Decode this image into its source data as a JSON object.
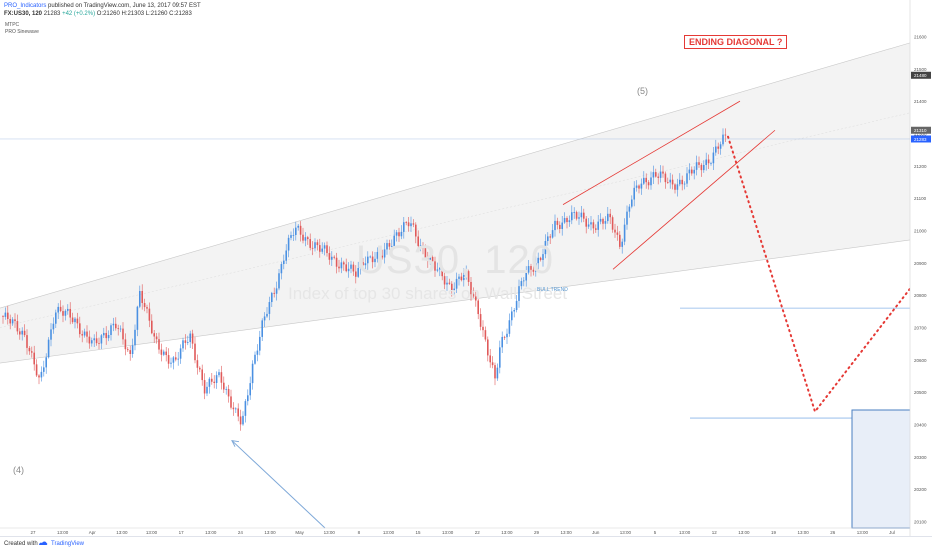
{
  "header": {
    "publisher": "PRO_Indicators",
    "published_text": "published on TradingView.com, June 13, 2017 09:57 EST",
    "symbol": "FX:US30, 120",
    "last": "21283",
    "change": "+42 (+0.2%)",
    "ohlc": "O:21260 H:21303 L:21260 C:21283"
  },
  "indicators": [
    "MTPC",
    "PRO Sinewave"
  ],
  "watermark": {
    "symbol": "US30, 120",
    "description": "Index of top 30 shares on Wall Street"
  },
  "annotations": {
    "ending_diagonal": "ENDING DIAGONAL ?",
    "wave5": "(5)",
    "wave4": "(4)",
    "bull_trend": "BULL TREND"
  },
  "footer": {
    "created_with": "Created with",
    "brand": "TradingView"
  },
  "colors": {
    "up_candle": "#4a90e2",
    "down_candle": "#e05a5a",
    "channel_fill": "#f3f3f3",
    "channel_line": "#c8c8c8",
    "diagonal": "#e53935",
    "projection": "#e53935",
    "arrow": "#7ea8d8",
    "level_line": "#8ab4e8",
    "last_price": "#2962ff"
  },
  "chart_data": {
    "type": "candlestick",
    "title": "US30, 120",
    "ylim": [
      20080,
      21620
    ],
    "price_axis_labels": [
      "21600",
      "21500",
      "21400",
      "21300",
      "21200",
      "21100",
      "21000",
      "20900",
      "20800",
      "20700",
      "20600",
      "20500",
      "20400",
      "20300",
      "20200",
      "20100"
    ],
    "price_axis_marked": [
      "21480",
      "21310",
      "21283"
    ],
    "last_price": 21283,
    "time_axis_labels": [
      "27",
      "13:00",
      "Apr",
      "13:00",
      "13:00",
      "17",
      "13:00",
      "24",
      "13:00",
      "May",
      "13:00",
      "8",
      "13:00",
      "15",
      "13:00",
      "22",
      "13:00",
      "29",
      "13:00",
      "Jun",
      "13:00",
      "5",
      "13:00",
      "12",
      "13:00",
      "19",
      "13:00",
      "26",
      "13:00",
      "Jul"
    ],
    "price_path": [
      [
        0,
        20740
      ],
      [
        25,
        20680
      ],
      [
        40,
        20520
      ],
      [
        55,
        20760
      ],
      [
        75,
        20720
      ],
      [
        95,
        20640
      ],
      [
        115,
        20720
      ],
      [
        130,
        20600
      ],
      [
        140,
        20820
      ],
      [
        155,
        20650
      ],
      [
        175,
        20590
      ],
      [
        190,
        20680
      ],
      [
        205,
        20500
      ],
      [
        220,
        20560
      ],
      [
        235,
        20430
      ],
      [
        242,
        20400
      ],
      [
        252,
        20580
      ],
      [
        262,
        20700
      ],
      [
        275,
        20820
      ],
      [
        285,
        20940
      ],
      [
        295,
        21000
      ],
      [
        305,
        20980
      ],
      [
        320,
        20940
      ],
      [
        340,
        20900
      ],
      [
        355,
        20860
      ],
      [
        365,
        20920
      ],
      [
        380,
        20910
      ],
      [
        395,
        20990
      ],
      [
        410,
        21020
      ],
      [
        420,
        20960
      ],
      [
        435,
        20880
      ],
      [
        450,
        20830
      ],
      [
        465,
        20860
      ],
      [
        478,
        20760
      ],
      [
        488,
        20620
      ],
      [
        495,
        20530
      ],
      [
        500,
        20640
      ],
      [
        510,
        20730
      ],
      [
        525,
        20860
      ],
      [
        540,
        20920
      ],
      [
        555,
        21010
      ],
      [
        570,
        21050
      ],
      [
        590,
        21020
      ],
      [
        610,
        21030
      ],
      [
        620,
        20960
      ],
      [
        630,
        21090
      ],
      [
        640,
        21140
      ],
      [
        655,
        21180
      ],
      [
        670,
        21140
      ],
      [
        685,
        21160
      ],
      [
        700,
        21200
      ],
      [
        712,
        21230
      ],
      [
        725,
        21283
      ]
    ],
    "channel": {
      "upper": [
        [
          0,
          20760
        ],
        [
          932,
          21600
        ]
      ],
      "lower": [
        [
          0,
          20590
        ],
        [
          932,
          20980
        ]
      ],
      "mid": [
        [
          0,
          20700
        ],
        [
          932,
          21380
        ]
      ]
    },
    "ending_diagonal": {
      "upper": [
        [
          563,
          21080
        ],
        [
          740,
          21400
        ]
      ],
      "lower": [
        [
          613,
          20880
        ],
        [
          775,
          21310
        ]
      ]
    },
    "projection": [
      [
        728,
        21290
      ],
      [
        815,
        20440
      ],
      [
        910,
        20820
      ]
    ],
    "arrow": {
      "from": [
        325,
        20080
      ],
      "to": [
        232,
        20350
      ]
    },
    "level_lines": [
      {
        "x_from": 680,
        "x_to": 932,
        "y": 20760
      },
      {
        "x_from": 690,
        "x_to": 932,
        "y": 20420
      }
    ]
  }
}
